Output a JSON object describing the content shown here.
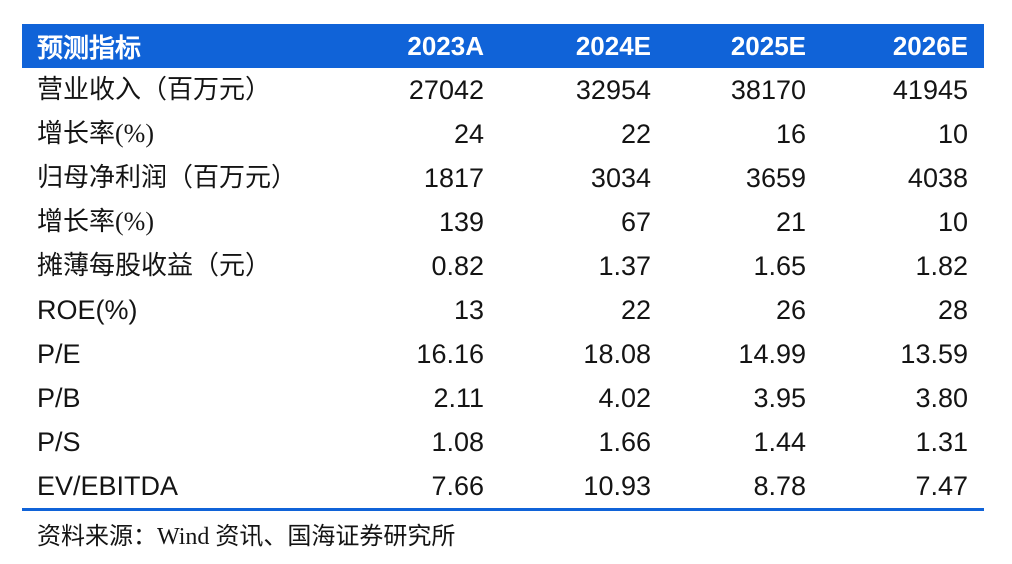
{
  "colors": {
    "header_bg": "#1063d8",
    "divider": "#1063d8",
    "header_text": "#ffffff",
    "body_text": "#141414"
  },
  "table": {
    "header": {
      "label": "预测指标",
      "cols": [
        "2023A",
        "2024E",
        "2025E",
        "2026E"
      ]
    },
    "rows": [
      {
        "label": "营业收入（百万元）",
        "values": [
          "27042",
          "32954",
          "38170",
          "41945"
        ]
      },
      {
        "label": "增长率(%)",
        "values": [
          "24",
          "22",
          "16",
          "10"
        ]
      },
      {
        "label": "归母净利润（百万元）",
        "values": [
          "1817",
          "3034",
          "3659",
          "4038"
        ]
      },
      {
        "label": "增长率(%)",
        "values": [
          "139",
          "67",
          "21",
          "10"
        ]
      },
      {
        "label": "摊薄每股收益（元）",
        "values": [
          "0.82",
          "1.37",
          "1.65",
          "1.82"
        ]
      },
      {
        "label": "ROE(%)",
        "values": [
          "13",
          "22",
          "26",
          "28"
        ]
      },
      {
        "label": "P/E",
        "values": [
          "16.16",
          "18.08",
          "14.99",
          "13.59"
        ]
      },
      {
        "label": "P/B",
        "values": [
          "2.11",
          "4.02",
          "3.95",
          "3.80"
        ]
      },
      {
        "label": "P/S",
        "values": [
          "1.08",
          "1.66",
          "1.44",
          "1.31"
        ]
      },
      {
        "label": "EV/EBITDA",
        "values": [
          "7.66",
          "10.93",
          "8.78",
          "7.47"
        ]
      }
    ]
  },
  "footer": {
    "source": "资料来源：Wind 资讯、国海证券研究所"
  },
  "chart_data": {
    "type": "table",
    "title": "预测指标",
    "categories": [
      "2023A",
      "2024E",
      "2025E",
      "2026E"
    ],
    "series": [
      {
        "name": "营业收入（百万元）",
        "values": [
          27042,
          32954,
          38170,
          41945
        ]
      },
      {
        "name": "增长率(%)",
        "values": [
          24,
          22,
          16,
          10
        ]
      },
      {
        "name": "归母净利润（百万元）",
        "values": [
          1817,
          3034,
          3659,
          4038
        ]
      },
      {
        "name": "增长率(%)",
        "values": [
          139,
          67,
          21,
          10
        ]
      },
      {
        "name": "摊薄每股收益（元）",
        "values": [
          0.82,
          1.37,
          1.65,
          1.82
        ]
      },
      {
        "name": "ROE(%)",
        "values": [
          13,
          22,
          26,
          28
        ]
      },
      {
        "name": "P/E",
        "values": [
          16.16,
          18.08,
          14.99,
          13.59
        ]
      },
      {
        "name": "P/B",
        "values": [
          2.11,
          4.02,
          3.95,
          3.8
        ]
      },
      {
        "name": "P/S",
        "values": [
          1.08,
          1.66,
          1.44,
          1.31
        ]
      },
      {
        "name": "EV/EBITDA",
        "values": [
          7.66,
          10.93,
          8.78,
          7.47
        ]
      }
    ]
  }
}
